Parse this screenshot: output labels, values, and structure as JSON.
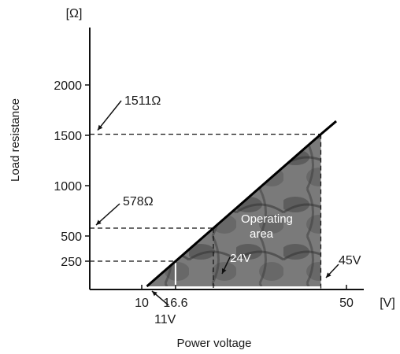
{
  "chart_data": {
    "type": "area",
    "title": "",
    "xlabel": "Power voltage",
    "ylabel": "Load resistance",
    "x_unit": "[V]",
    "y_unit": "[Ω]",
    "xlim": [
      0,
      55
    ],
    "ylim": [
      0,
      2400
    ],
    "x_ticks": [
      "10",
      "16.6",
      "50"
    ],
    "y_ticks": [
      "250",
      "500",
      "1000",
      "1500",
      "2000"
    ],
    "series": [
      {
        "values": [
          {
            "x": 11,
            "y": 0
          },
          {
            "x": 24,
            "y": 578
          },
          {
            "x": 45,
            "y": 1511
          },
          {
            "x": 48,
            "y": 1640
          }
        ]
      }
    ],
    "operating_area_vertices": [
      {
        "x": 11,
        "y": 0
      },
      {
        "x": 45,
        "y": 1511
      },
      {
        "x": 45,
        "y": 0
      }
    ],
    "guides": {
      "horizontal": [
        {
          "y": 1511,
          "x_end": 45,
          "label": "1511Ω"
        },
        {
          "y": 578,
          "x_end": 24,
          "label": "578Ω"
        },
        {
          "y": 250,
          "x_end": 16.6,
          "label": ""
        }
      ],
      "vertical": [
        {
          "x": 16.6,
          "y_end": 250
        },
        {
          "x": 24,
          "y_end": 578
        },
        {
          "x": 45,
          "y_end": 1511
        }
      ]
    },
    "annotations": {
      "area_label_1": "Operating",
      "area_label_2": "area",
      "v24": "24V",
      "v45": "45V",
      "v11": "11V"
    }
  }
}
